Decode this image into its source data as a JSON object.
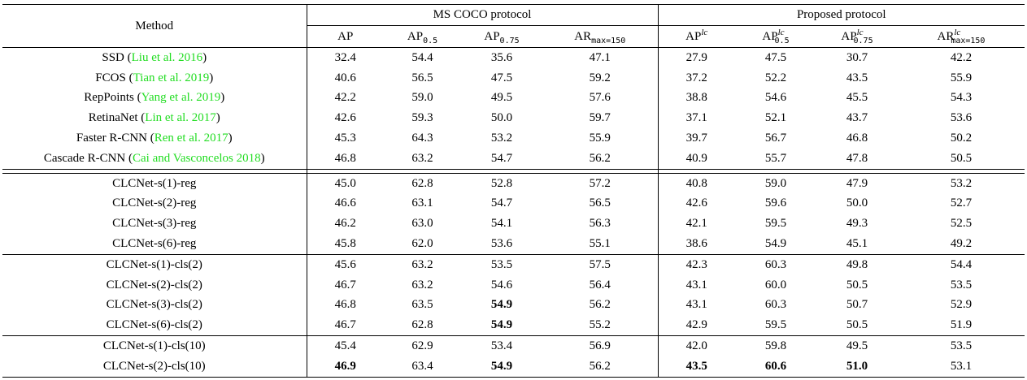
{
  "header": {
    "method": "Method",
    "group_coco": "MS COCO protocol",
    "group_proposed": "Proposed protocol",
    "coco_cols": [
      {
        "base": "AP",
        "sub": "",
        "sup": ""
      },
      {
        "base": "AP",
        "sub": "0.5",
        "sup": ""
      },
      {
        "base": "AP",
        "sub": "0.75",
        "sup": ""
      },
      {
        "base": "AR",
        "sub": "max=150",
        "sup": ""
      }
    ],
    "proposed_cols": [
      {
        "base": "AP",
        "sub": "",
        "sup": "lc"
      },
      {
        "base": "AP",
        "sub": "0.5",
        "sup": "lc"
      },
      {
        "base": "AP",
        "sub": "0.75",
        "sup": "lc"
      },
      {
        "base": "AR",
        "sub": "max=150",
        "sup": "lc"
      }
    ]
  },
  "groups": [
    {
      "rows": [
        {
          "method": "SSD",
          "cite": "Liu et al. 2016",
          "values": [
            "32.4",
            "54.4",
            "35.6",
            "47.1",
            "27.9",
            "47.5",
            "30.7",
            "42.2"
          ],
          "bold": []
        },
        {
          "method": "FCOS",
          "cite": "Tian et al. 2019",
          "values": [
            "40.6",
            "56.5",
            "47.5",
            "59.2",
            "37.2",
            "52.2",
            "43.5",
            "55.9"
          ],
          "bold": []
        },
        {
          "method": "RepPoints",
          "cite": "Yang et al. 2019",
          "values": [
            "42.2",
            "59.0",
            "49.5",
            "57.6",
            "38.8",
            "54.6",
            "45.5",
            "54.3"
          ],
          "bold": []
        },
        {
          "method": "RetinaNet",
          "cite": "Lin et al. 2017",
          "values": [
            "42.6",
            "59.3",
            "50.0",
            "59.7",
            "37.1",
            "52.1",
            "43.7",
            "53.6"
          ],
          "bold": []
        },
        {
          "method": "Faster R-CNN",
          "cite": "Ren et al. 2017",
          "values": [
            "45.3",
            "64.3",
            "53.2",
            "55.9",
            "39.7",
            "56.7",
            "46.8",
            "50.2"
          ],
          "bold": []
        },
        {
          "method": "Cascade R-CNN",
          "cite": "Cai and Vasconcelos 2018",
          "values": [
            "46.8",
            "63.2",
            "54.7",
            "56.2",
            "40.9",
            "55.7",
            "47.8",
            "50.5"
          ],
          "bold": []
        }
      ]
    },
    {
      "rows": [
        {
          "method": "CLCNet-s(1)-reg",
          "cite": "",
          "values": [
            "45.0",
            "62.8",
            "52.8",
            "57.2",
            "40.8",
            "59.0",
            "47.9",
            "53.2"
          ],
          "bold": []
        },
        {
          "method": "CLCNet-s(2)-reg",
          "cite": "",
          "values": [
            "46.6",
            "63.1",
            "54.7",
            "56.5",
            "42.6",
            "59.6",
            "50.0",
            "52.7"
          ],
          "bold": []
        },
        {
          "method": "CLCNet-s(3)-reg",
          "cite": "",
          "values": [
            "46.2",
            "63.0",
            "54.1",
            "56.3",
            "42.1",
            "59.5",
            "49.3",
            "52.5"
          ],
          "bold": []
        },
        {
          "method": "CLCNet-s(6)-reg",
          "cite": "",
          "values": [
            "45.8",
            "62.0",
            "53.6",
            "55.1",
            "38.6",
            "54.9",
            "45.1",
            "49.2"
          ],
          "bold": []
        }
      ]
    },
    {
      "rows": [
        {
          "method": "CLCNet-s(1)-cls(2)",
          "cite": "",
          "values": [
            "45.6",
            "63.2",
            "53.5",
            "57.5",
            "42.3",
            "60.3",
            "49.8",
            "54.4"
          ],
          "bold": []
        },
        {
          "method": "CLCNet-s(2)-cls(2)",
          "cite": "",
          "values": [
            "46.7",
            "63.2",
            "54.6",
            "56.4",
            "43.1",
            "60.0",
            "50.5",
            "53.5"
          ],
          "bold": []
        },
        {
          "method": "CLCNet-s(3)-cls(2)",
          "cite": "",
          "values": [
            "46.8",
            "63.5",
            "54.9",
            "56.2",
            "43.1",
            "60.3",
            "50.7",
            "52.9"
          ],
          "bold": [
            2
          ]
        },
        {
          "method": "CLCNet-s(6)-cls(2)",
          "cite": "",
          "values": [
            "46.7",
            "62.8",
            "54.9",
            "55.2",
            "42.9",
            "59.5",
            "50.5",
            "51.9"
          ],
          "bold": [
            2
          ]
        }
      ]
    },
    {
      "rows": [
        {
          "method": "CLCNet-s(1)-cls(10)",
          "cite": "",
          "values": [
            "45.4",
            "62.9",
            "53.4",
            "56.9",
            "42.0",
            "59.8",
            "49.5",
            "53.5"
          ],
          "bold": []
        },
        {
          "method": "CLCNet-s(2)-cls(10)",
          "cite": "",
          "values": [
            "46.9",
            "63.4",
            "54.9",
            "56.2",
            "43.5",
            "60.6",
            "51.0",
            "53.1"
          ],
          "bold": [
            0,
            2,
            4,
            5,
            6
          ]
        }
      ]
    }
  ]
}
